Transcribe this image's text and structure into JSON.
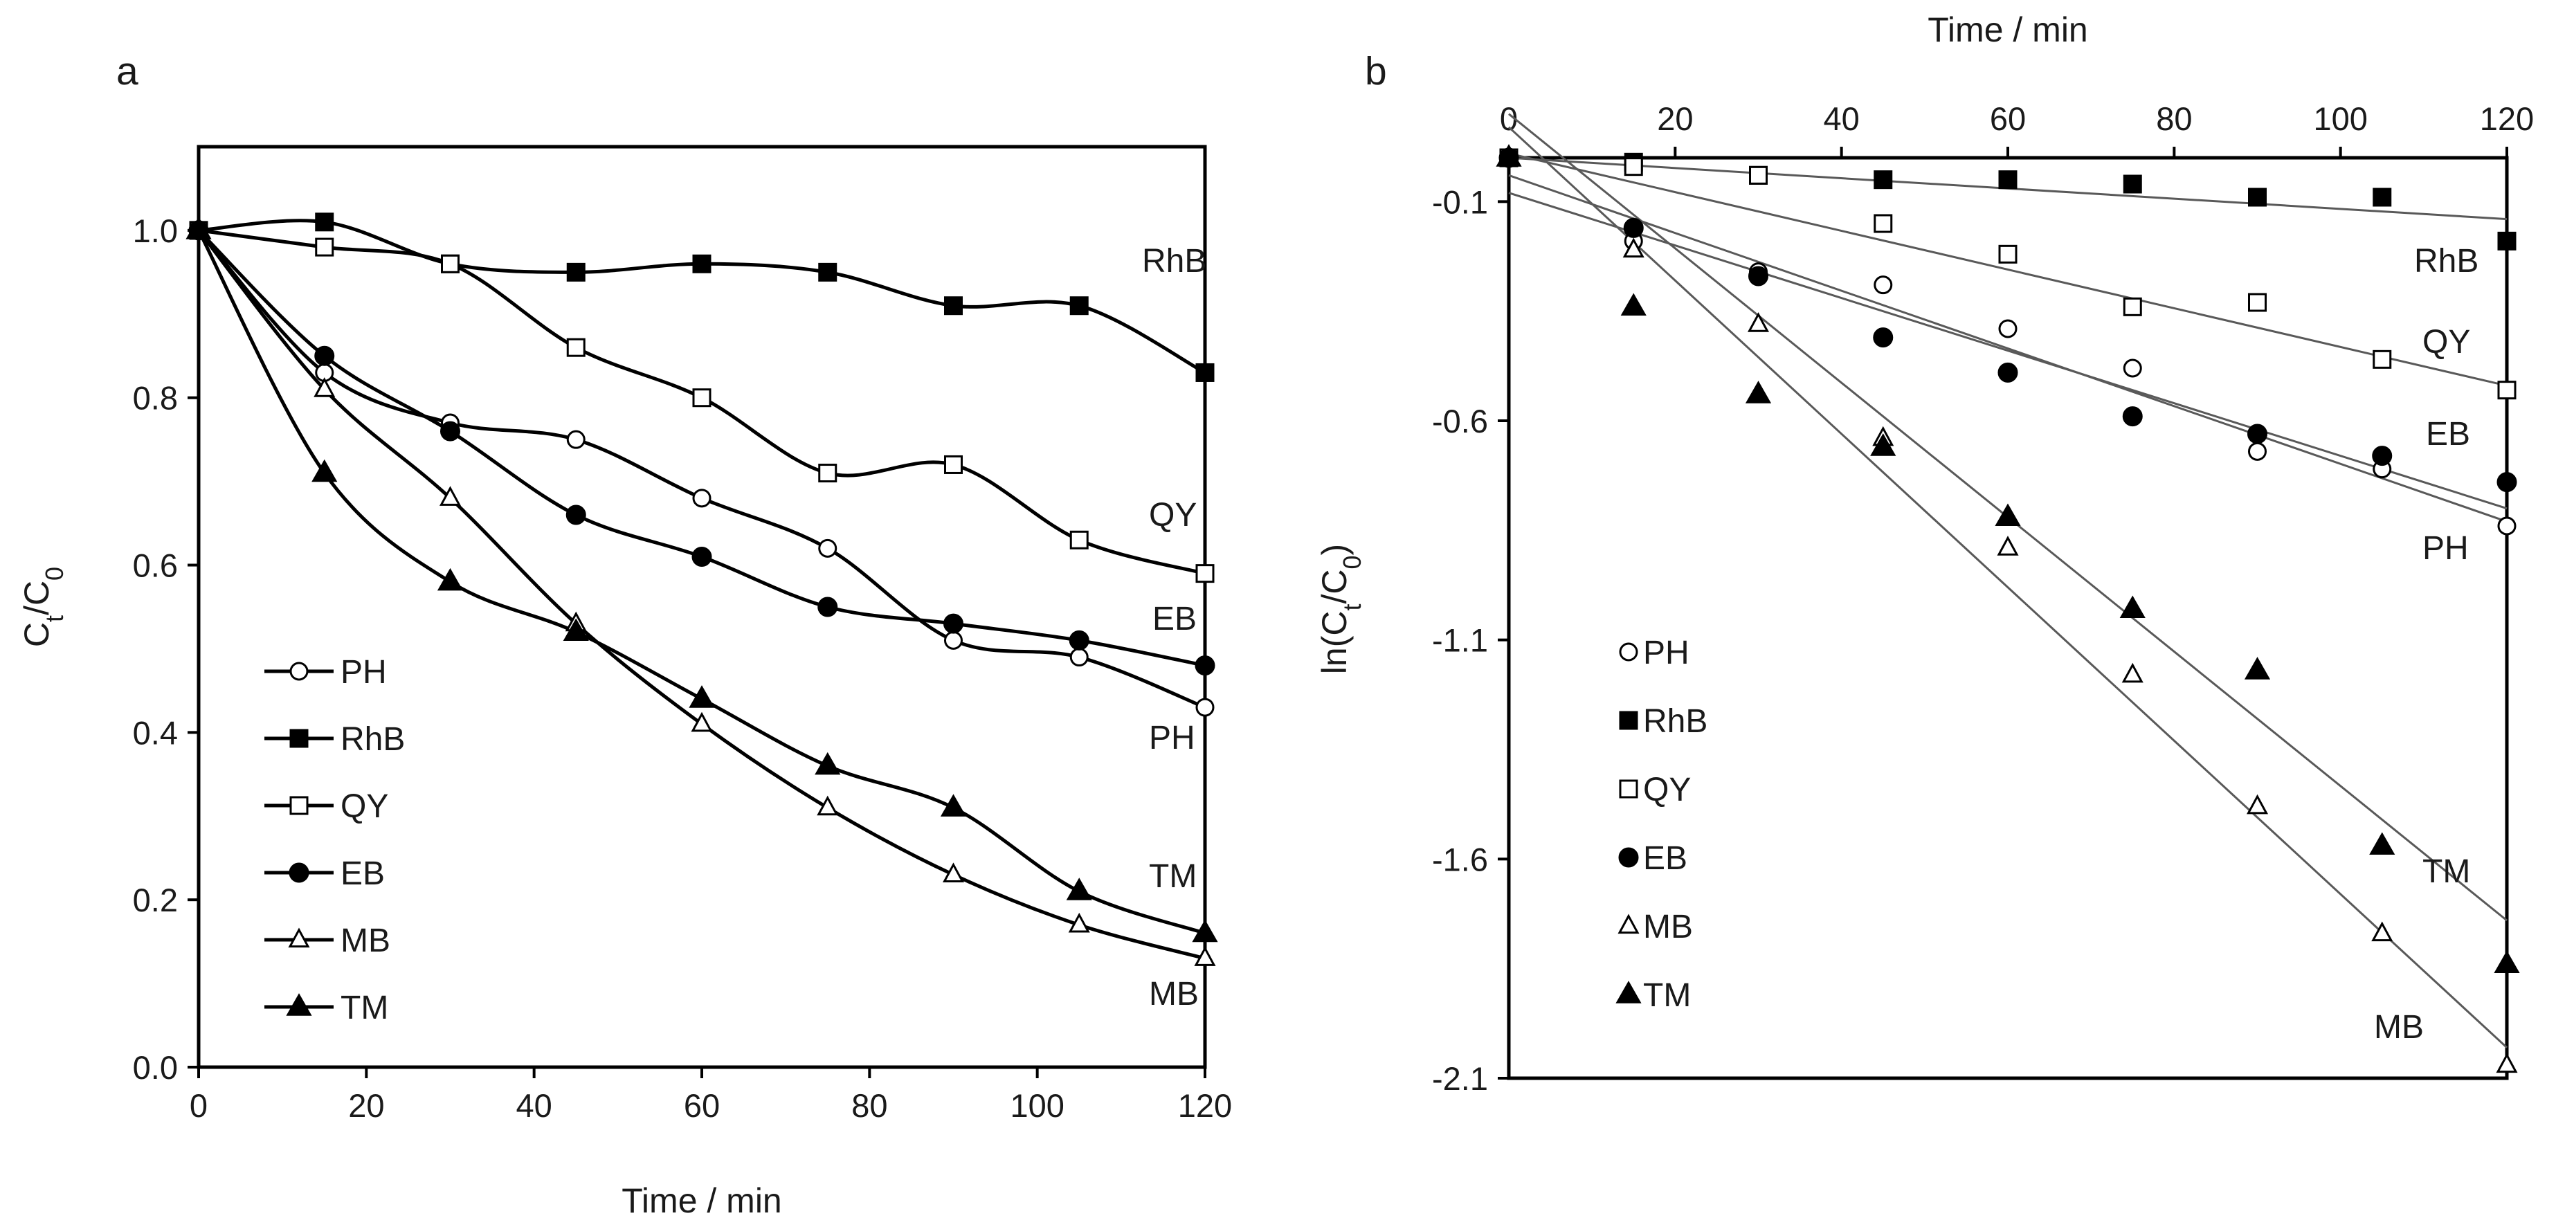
{
  "chart_data": [
    {
      "panel": "a",
      "type": "line",
      "panel_label": "a",
      "title": "",
      "xlabel": "Time / min",
      "ylabel_main": "C",
      "ylabel_sub_t": "t",
      "ylabel_slash": "/C",
      "ylabel_sub_0": "0",
      "xlim": [
        0,
        120
      ],
      "ylim": [
        0,
        1.1
      ],
      "xticks": [
        "0",
        "20",
        "40",
        "60",
        "80",
        "100",
        "120"
      ],
      "yticks": [
        "0.0",
        "0.2",
        "0.4",
        "0.6",
        "0.8",
        "1.0"
      ],
      "x": [
        0,
        15,
        30,
        45,
        60,
        75,
        90,
        105,
        120
      ],
      "series": [
        {
          "name": "PH",
          "marker": "circle-open",
          "end_label": "PH",
          "values": [
            1.0,
            0.83,
            0.77,
            0.75,
            0.68,
            0.62,
            0.51,
            0.49,
            0.43
          ]
        },
        {
          "name": "RhB",
          "marker": "square-filled",
          "end_label": "RhB",
          "values": [
            1.0,
            1.01,
            0.96,
            0.95,
            0.96,
            0.95,
            0.91,
            0.91,
            0.83
          ]
        },
        {
          "name": "QY",
          "marker": "square-open",
          "end_label": "QY",
          "values": [
            1.0,
            0.98,
            0.96,
            0.86,
            0.8,
            0.71,
            0.72,
            0.63,
            0.59
          ]
        },
        {
          "name": "EB",
          "marker": "circle-filled",
          "end_label": "EB",
          "values": [
            1.0,
            0.85,
            0.76,
            0.66,
            0.61,
            0.55,
            0.53,
            0.51,
            0.48
          ]
        },
        {
          "name": "MB",
          "marker": "triangle-open",
          "end_label": "MB",
          "values": [
            1.0,
            0.81,
            0.68,
            0.53,
            0.41,
            0.31,
            0.23,
            0.17,
            0.13
          ]
        },
        {
          "name": "TM",
          "marker": "triangle-filled",
          "end_label": "TM",
          "values": [
            1.0,
            0.71,
            0.58,
            0.52,
            0.44,
            0.36,
            0.31,
            0.21,
            0.16
          ]
        }
      ],
      "legend_position": "lower-left"
    },
    {
      "panel": "b",
      "type": "scatter",
      "panel_label": "b",
      "title": "",
      "xlabel": "Time / min",
      "xaxis_position": "top",
      "ylabel_pre": "ln(C",
      "ylabel_sub_t": "t",
      "ylabel_slash": "/C",
      "ylabel_sub_0": "0",
      "ylabel_post": ")",
      "xlim": [
        0,
        120
      ],
      "ylim": [
        -2.1,
        0
      ],
      "xticks": [
        "0",
        "20",
        "40",
        "60",
        "80",
        "100",
        "120"
      ],
      "yticks": [
        "-0.1",
        "-0.6",
        "-1.1",
        "-1.6",
        "-2.1"
      ],
      "x": [
        0,
        15,
        30,
        45,
        60,
        75,
        90,
        105,
        120
      ],
      "series": [
        {
          "name": "PH",
          "marker": "circle-open",
          "end_label": "PH",
          "values": [
            0,
            -0.19,
            -0.26,
            -0.29,
            -0.39,
            -0.48,
            -0.67,
            -0.71,
            -0.84
          ],
          "fit": [
            -0.08,
            -0.8
          ]
        },
        {
          "name": "RhB",
          "marker": "square-filled",
          "end_label": "RhB",
          "values": [
            0,
            -0.01,
            -0.04,
            -0.05,
            -0.05,
            -0.06,
            -0.09,
            -0.09,
            -0.19
          ],
          "fit": [
            0,
            -0.14
          ]
        },
        {
          "name": "QY",
          "marker": "square-open",
          "end_label": "QY",
          "values": [
            0,
            -0.02,
            -0.04,
            -0.15,
            -0.22,
            -0.34,
            -0.33,
            -0.46,
            -0.53
          ],
          "fit": [
            0.01,
            -0.52
          ]
        },
        {
          "name": "EB",
          "marker": "circle-filled",
          "end_label": "EB",
          "values": [
            0,
            -0.16,
            -0.27,
            -0.41,
            -0.49,
            -0.59,
            -0.63,
            -0.68,
            -0.74
          ],
          "fit": [
            -0.04,
            -0.83
          ]
        },
        {
          "name": "MB",
          "marker": "triangle-open",
          "end_label": "MB",
          "values": [
            0,
            -0.21,
            -0.38,
            -0.64,
            -0.89,
            -1.18,
            -1.48,
            -1.77,
            -2.07
          ],
          "fit": [
            0.07,
            -2.03
          ]
        },
        {
          "name": "TM",
          "marker": "triangle-filled",
          "end_label": "TM",
          "values": [
            0,
            -0.34,
            -0.54,
            -0.66,
            -0.82,
            -1.03,
            -1.17,
            -1.57,
            -1.84
          ],
          "fit": [
            0.1,
            -1.74
          ]
        }
      ],
      "legend_position": "lower-left"
    }
  ]
}
